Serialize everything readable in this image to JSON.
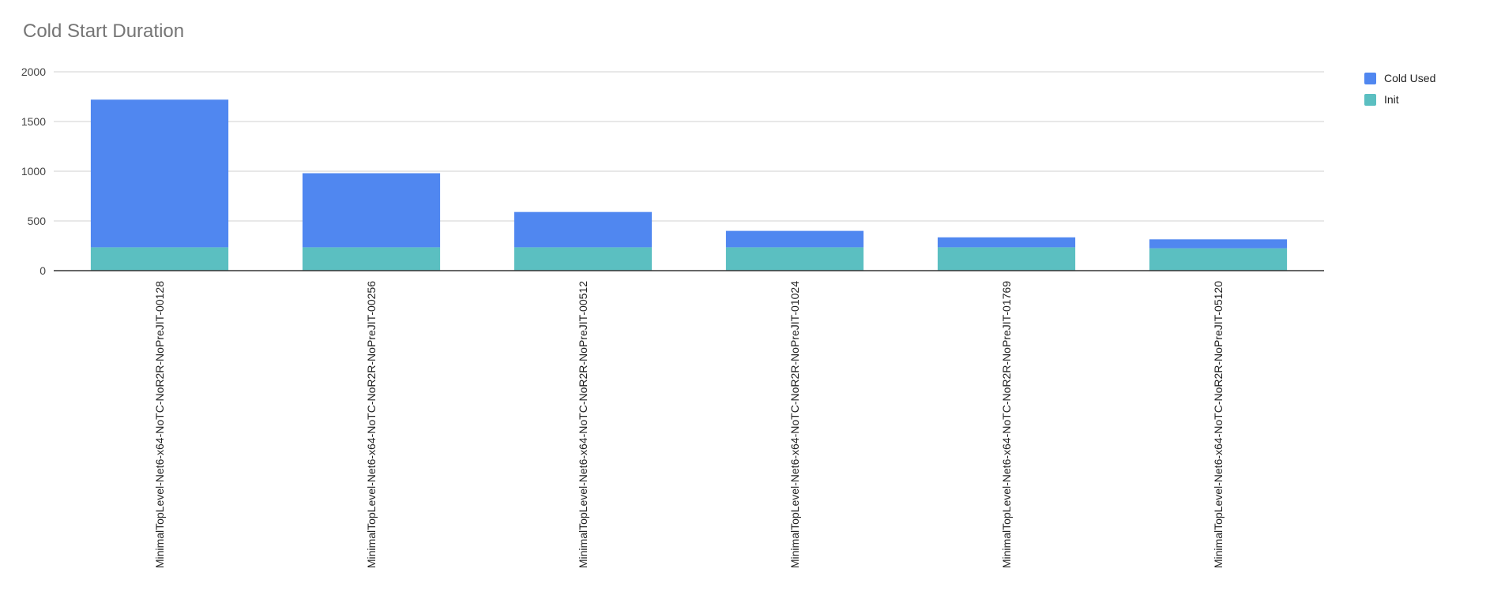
{
  "chart_data": {
    "type": "bar",
    "stacked": true,
    "title": "Cold Start Duration",
    "xlabel": "",
    "ylabel": "",
    "ylim": [
      0,
      2000
    ],
    "yticks": [
      "0",
      "500",
      "1000",
      "1500",
      "2000"
    ],
    "grid": true,
    "legend_position": "right",
    "categories": [
      "MinimalTopLevel-Net6-x64-NoTC-NoR2R-NoPreJIT-00128",
      "MinimalTopLevel-Net6-x64-NoTC-NoR2R-NoPreJIT-00256",
      "MinimalTopLevel-Net6-x64-NoTC-NoR2R-NoPreJIT-00512",
      "MinimalTopLevel-Net6-x64-NoTC-NoR2R-NoPreJIT-01024",
      "MinimalTopLevel-Net6-x64-NoTC-NoR2R-NoPreJIT-01769",
      "MinimalTopLevel-Net6-x64-NoTC-NoR2R-NoPreJIT-05120"
    ],
    "series": [
      {
        "name": "Init",
        "color": "#5bbfc1",
        "values": [
          235,
          235,
          235,
          235,
          235,
          225
        ]
      },
      {
        "name": "Cold Used",
        "color": "#5087f0",
        "values": [
          1485,
          745,
          355,
          165,
          100,
          90
        ]
      }
    ],
    "legend": [
      "Cold Used",
      "Init"
    ]
  }
}
